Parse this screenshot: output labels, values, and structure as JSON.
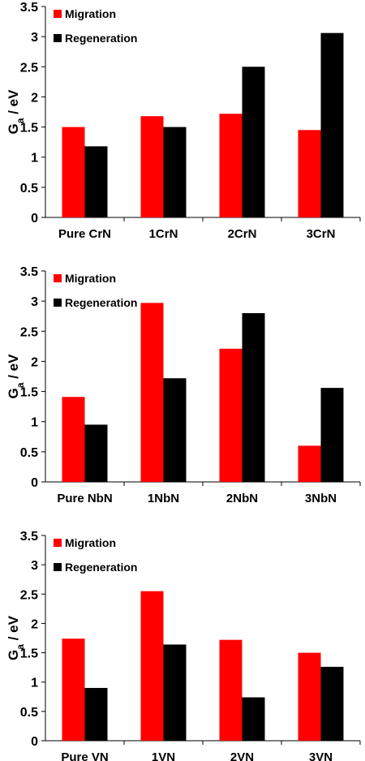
{
  "colors": {
    "migration": "#ff0000",
    "regeneration": "#000000"
  },
  "chart_data": [
    {
      "type": "bar",
      "categories": [
        "Pure CrN",
        "1CrN",
        "2CrN",
        "3CrN"
      ],
      "series": [
        {
          "name": "Migration",
          "values": [
            1.5,
            1.68,
            1.72,
            1.45
          ]
        },
        {
          "name": "Regeneration",
          "values": [
            1.18,
            1.5,
            2.5,
            3.06
          ]
        }
      ],
      "ylabel": {
        "main": "G",
        "sub": "a",
        "unit": " / eV"
      },
      "ylim": [
        0,
        3.5
      ],
      "yticks": [
        "0",
        "0.5",
        "1",
        "1.5",
        "2",
        "2.5",
        "3",
        "3.5"
      ],
      "legend": "top-left"
    },
    {
      "type": "bar",
      "categories": [
        "Pure NbN",
        "1NbN",
        "2NbN",
        "3NbN"
      ],
      "series": [
        {
          "name": "Migration",
          "values": [
            1.41,
            2.97,
            2.21,
            0.6
          ]
        },
        {
          "name": "Regeneration",
          "values": [
            0.95,
            1.72,
            2.8,
            1.56
          ]
        }
      ],
      "ylabel": {
        "main": "G",
        "sub": "a",
        "unit": " / eV"
      },
      "ylim": [
        0,
        3.5
      ],
      "yticks": [
        "0",
        "0.5",
        "1",
        "1.5",
        "2",
        "2.5",
        "3",
        "3.5"
      ],
      "legend": "top-left"
    },
    {
      "type": "bar",
      "categories": [
        "Pure VN",
        "1VN",
        "2VN",
        "3VN"
      ],
      "series": [
        {
          "name": "Migration",
          "values": [
            1.74,
            2.55,
            1.72,
            1.5
          ]
        },
        {
          "name": "Regeneration",
          "values": [
            0.9,
            1.64,
            0.74,
            1.26
          ]
        }
      ],
      "ylabel": {
        "main": "G",
        "sub": "a",
        "unit": " / eV"
      },
      "ylim": [
        0,
        3.5
      ],
      "yticks": [
        "0",
        "0.5",
        "1",
        "1.5",
        "2",
        "2.5",
        "3",
        "3.5"
      ],
      "legend": "top-left"
    }
  ]
}
